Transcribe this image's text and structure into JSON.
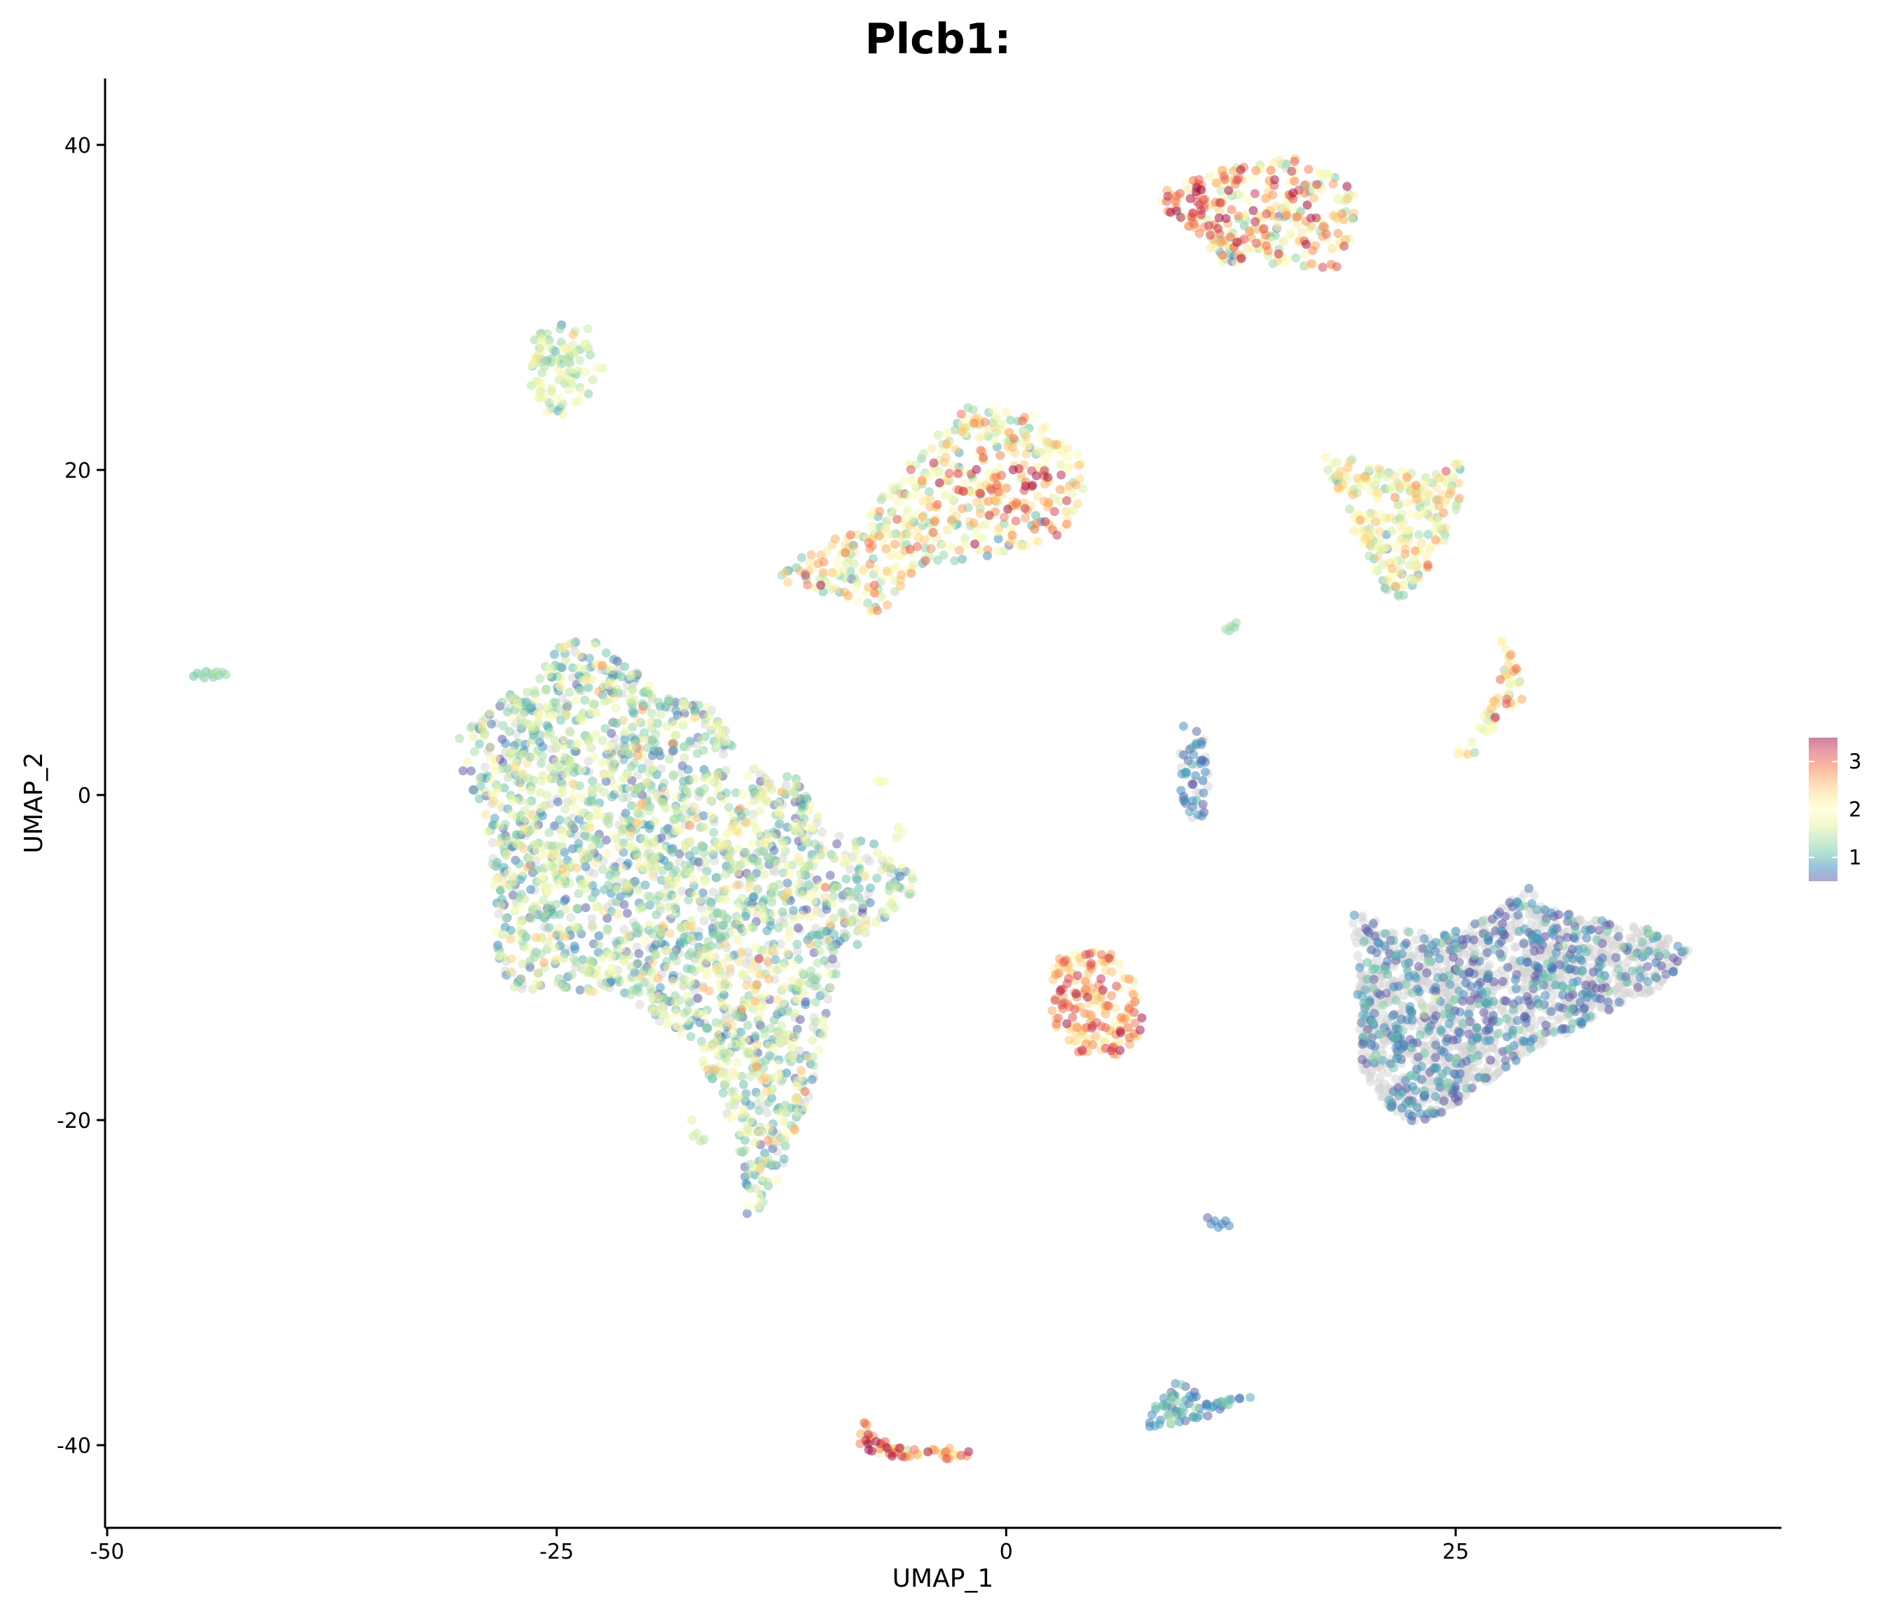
{
  "chart_data": {
    "type": "scatter",
    "title": "Plcb1:",
    "xlabel": "UMAP_1",
    "ylabel": "UMAP_2",
    "xlim": [
      -50,
      43
    ],
    "ylim": [
      -45,
      44
    ],
    "x_ticks": [
      -50,
      -25,
      0,
      25
    ],
    "x_tick_labels": [
      "-50",
      "-25",
      "0",
      "25"
    ],
    "y_ticks": [
      -40,
      -20,
      0,
      20,
      40
    ],
    "y_tick_labels": [
      "-40",
      "-20",
      "0",
      "20",
      "40"
    ],
    "grid": false,
    "color_scale": {
      "palette": "Spectral (reversed)",
      "range": [
        0.5,
        3.5
      ],
      "ticks": [
        1,
        2,
        3
      ],
      "tick_labels": [
        "1",
        "2",
        "3"
      ],
      "colors": [
        "#5e4fa2",
        "#3288bd",
        "#66c2a5",
        "#abdda4",
        "#e6f598",
        "#ffffbf",
        "#fee08b",
        "#fdae61",
        "#f46d43",
        "#d53e4f",
        "#9e0142"
      ],
      "zero_color": "#d3d3d3"
    },
    "legend_position": "right",
    "clusters": [
      {
        "shape": "poly",
        "pts": [
          [
            8,
            37
          ],
          [
            12,
            38.5
          ],
          [
            16,
            39.2
          ],
          [
            19.5,
            37.5
          ],
          [
            19.3,
            34.5
          ],
          [
            18.5,
            32.4
          ],
          [
            12,
            32.8
          ],
          [
            9.5,
            35
          ]
        ],
        "n": 330,
        "mean": 2.2,
        "sd": 0.65,
        "zero": 0,
        "hot": [
          [
            10.5,
            36.5,
            3.5,
            0.9
          ]
        ]
      },
      {
        "shape": "poly",
        "pts": [
          [
            -26.3,
            28.2
          ],
          [
            -25,
            29
          ],
          [
            -23.2,
            28.7
          ],
          [
            -22.3,
            26
          ],
          [
            -23.5,
            24.3
          ],
          [
            -25.2,
            23
          ],
          [
            -26.5,
            25
          ]
        ],
        "n": 95,
        "mean": 1.6,
        "sd": 0.35,
        "zero": 0
      },
      {
        "shape": "poly",
        "pts": [
          [
            -12.5,
            14
          ],
          [
            -8,
            17
          ],
          [
            -5,
            21
          ],
          [
            -2,
            24
          ],
          [
            1.5,
            23.5
          ],
          [
            4,
            21
          ],
          [
            5,
            19.5
          ],
          [
            3,
            16
          ],
          [
            0,
            14.8
          ],
          [
            -5,
            14
          ],
          [
            -7,
            11
          ],
          [
            -9,
            12
          ],
          [
            -12.5,
            13.2
          ]
        ],
        "n": 520,
        "mean": 2.0,
        "sd": 0.6,
        "zero": 0,
        "hot": [
          [
            1,
            19,
            3.5,
            0.9
          ]
        ]
      },
      {
        "shape": "poly",
        "pts": [
          [
            17.5,
            21
          ],
          [
            20,
            20.5
          ],
          [
            23.5,
            19.5
          ],
          [
            25.5,
            20.8
          ],
          [
            25,
            16.5
          ],
          [
            23,
            13
          ],
          [
            21.5,
            11.5
          ],
          [
            19.8,
            15
          ],
          [
            18.5,
            18
          ]
        ],
        "n": 260,
        "mean": 1.8,
        "sd": 0.5,
        "zero": 0
      },
      {
        "shape": "poly",
        "pts": [
          [
            27.2,
            10.5
          ],
          [
            28.5,
            8
          ],
          [
            28.8,
            6
          ],
          [
            27.5,
            4.5
          ],
          [
            26,
            2.5
          ],
          [
            24.8,
            2
          ],
          [
            25.3,
            3.3
          ],
          [
            26.7,
            5
          ],
          [
            27.8,
            8
          ]
        ],
        "n": 55,
        "mean": 2.1,
        "sd": 0.5,
        "zero": 0
      },
      {
        "shape": "poly",
        "pts": [
          [
            -30.5,
            3.5
          ],
          [
            -28,
            6
          ],
          [
            -26,
            7
          ],
          [
            -25,
            9.5
          ],
          [
            -23,
            9.5
          ],
          [
            -21,
            8
          ],
          [
            -19,
            6
          ],
          [
            -16.5,
            5.5
          ],
          [
            -15,
            3
          ],
          [
            -16,
            0
          ],
          [
            -14,
            1.8
          ],
          [
            -11.5,
            1
          ],
          [
            -10,
            -2
          ],
          [
            -7,
            -3
          ],
          [
            -4.5,
            -5.5
          ],
          [
            -6,
            -7
          ],
          [
            -9,
            -10
          ],
          [
            -10,
            -14
          ],
          [
            -11,
            -19
          ],
          [
            -12.5,
            -23
          ],
          [
            -13,
            -24.5
          ],
          [
            -14.5,
            -26.5
          ],
          [
            -15,
            -22
          ],
          [
            -16,
            -18
          ],
          [
            -18,
            -15
          ],
          [
            -21,
            -12.5
          ],
          [
            -24,
            -12
          ],
          [
            -28,
            -12
          ],
          [
            -28.5,
            -10
          ],
          [
            -28.5,
            -5
          ],
          [
            -29,
            -1
          ],
          [
            -30.5,
            2
          ]
        ],
        "n": 2400,
        "mean": 1.35,
        "sd": 0.5,
        "zero": 0.15,
        "hot": [
          [
            -14,
            -11,
            3,
            0.8
          ],
          [
            -14.5,
            -1.5,
            2,
            0.7
          ]
        ]
      },
      {
        "shape": "poly",
        "pts": [
          [
            3,
            -9.5
          ],
          [
            6,
            -9.6
          ],
          [
            7.2,
            -11.5
          ],
          [
            7.8,
            -14.5
          ],
          [
            6.5,
            -16
          ],
          [
            4,
            -16
          ],
          [
            2.5,
            -14
          ],
          [
            2.5,
            -11
          ]
        ],
        "n": 190,
        "mean": 2.6,
        "sd": 0.45,
        "zero": 0
      },
      {
        "shape": "poly",
        "pts": [
          [
            19,
            -7
          ],
          [
            21.5,
            -8.2
          ],
          [
            24,
            -8.6
          ],
          [
            27,
            -7.5
          ],
          [
            29,
            -5.6
          ],
          [
            30,
            -7
          ],
          [
            32.5,
            -7.5
          ],
          [
            36,
            -8.3
          ],
          [
            38,
            -9.5
          ],
          [
            37,
            -11.5
          ],
          [
            33,
            -13.5
          ],
          [
            29,
            -16
          ],
          [
            25,
            -19
          ],
          [
            23,
            -20.5
          ],
          [
            21,
            -19
          ],
          [
            19.8,
            -17
          ],
          [
            19.5,
            -12
          ],
          [
            19.3,
            -8.5
          ]
        ],
        "n": 1700,
        "mean": 0.75,
        "sd": 0.28,
        "zero": 0.66
      },
      {
        "shape": "poly",
        "pts": [
          [
            9.5,
            4.5
          ],
          [
            10.8,
            4.2
          ],
          [
            11.3,
            2.5
          ],
          [
            11.2,
            -1
          ],
          [
            10.5,
            -1.8
          ],
          [
            9.7,
            0
          ],
          [
            9.7,
            2
          ]
        ],
        "n": 55,
        "mean": 0.7,
        "sd": 0.2,
        "zero": 0.25
      },
      {
        "shape": "poly",
        "pts": [
          [
            -8,
            -38
          ],
          [
            -7.3,
            -39.5
          ],
          [
            -5.5,
            -40.3
          ],
          [
            -3,
            -40.1
          ],
          [
            -1.5,
            -40.6
          ],
          [
            -3.5,
            -40.9
          ],
          [
            -6.5,
            -40.7
          ],
          [
            -8.2,
            -40.2
          ]
        ],
        "n": 70,
        "mean": 2.7,
        "sd": 0.5,
        "zero": 0
      },
      {
        "shape": "poly",
        "pts": [
          [
            7.5,
            -38.5
          ],
          [
            9,
            -36.5
          ],
          [
            10,
            -35.8
          ],
          [
            11,
            -37.5
          ],
          [
            12,
            -37.2
          ],
          [
            13.8,
            -37
          ],
          [
            12,
            -38
          ],
          [
            10,
            -38.6
          ],
          [
            8,
            -38.9
          ]
        ],
        "n": 70,
        "mean": 0.9,
        "sd": 0.28,
        "zero": 0
      },
      {
        "shape": "pts",
        "pts": [
          [
            -45,
            7.5
          ],
          [
            -44.8,
            7.4
          ],
          [
            -44.5,
            7.6
          ],
          [
            -44.2,
            7.45
          ],
          [
            -44,
            7.5
          ],
          [
            -43.8,
            7.35
          ],
          [
            -43.6,
            7.55
          ],
          [
            -43.4,
            7.4
          ],
          [
            -45.2,
            7.3
          ],
          [
            -44.6,
            7.2
          ],
          [
            -44.1,
            7.25
          ],
          [
            -43.9,
            7.6
          ]
        ],
        "value": 1.2
      },
      {
        "shape": "pts",
        "pts": [
          [
            12.2,
            10.2
          ],
          [
            12.5,
            10.4
          ],
          [
            12.8,
            10.6
          ],
          [
            12.4,
            10.1
          ],
          [
            12.7,
            10.3
          ]
        ],
        "value": 1.3
      },
      {
        "shape": "pts",
        "pts": [
          [
            11.2,
            -26
          ],
          [
            11.6,
            -26.2
          ],
          [
            12,
            -26.4
          ],
          [
            12.4,
            -26.5
          ],
          [
            11.8,
            -26.6
          ],
          [
            12.2,
            -26.2
          ],
          [
            11.4,
            -26.4
          ]
        ],
        "value": 0.75
      },
      {
        "shape": "pts",
        "pts": [
          [
            -17.5,
            -20
          ],
          [
            -17.2,
            -20.8
          ],
          [
            -17,
            -21.3
          ],
          [
            -17.4,
            -21
          ],
          [
            -16.8,
            -21.2
          ]
        ],
        "value": 1.5
      },
      {
        "shape": "pts",
        "pts": [
          [
            -7.2,
            0.9
          ],
          [
            -7,
            0.8
          ],
          [
            -6.8,
            0.85
          ],
          [
            -6,
            -2
          ],
          [
            -5.8,
            -2.3
          ],
          [
            -6.1,
            -2.6
          ]
        ],
        "value": 1.8
      }
    ]
  }
}
